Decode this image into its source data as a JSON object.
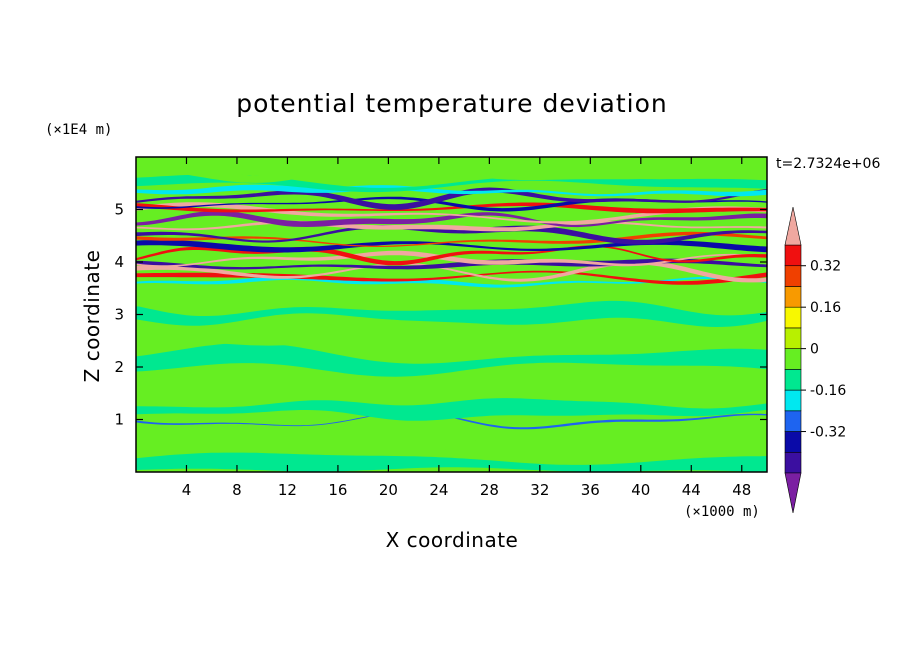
{
  "chart_data": {
    "type": "heatmap",
    "title": "potential temperature deviation",
    "xlabel": "X coordinate",
    "ylabel": "Z coordinate",
    "x_unit_label": "(×1000 m)",
    "y_unit_label": "(×1E4 m)",
    "time_label": "t=2.7324e+06",
    "xlim": [
      0,
      50
    ],
    "ylim": [
      0,
      6
    ],
    "x_ticks": [
      4,
      8,
      12,
      16,
      20,
      24,
      28,
      32,
      36,
      40,
      44,
      48
    ],
    "y_ticks": [
      1,
      2,
      3,
      4,
      5
    ],
    "colorbar": {
      "levels": [
        -0.48,
        -0.4,
        -0.32,
        -0.24,
        -0.16,
        -0.08,
        0,
        0.08,
        0.16,
        0.24,
        0.32,
        0.4
      ],
      "colors": [
        "#7b1fa2",
        "#3b0fa0",
        "#0a0aa8",
        "#1e64f0",
        "#00e8f0",
        "#00e890",
        "#66ee22",
        "#b8f000",
        "#f8f800",
        "#f89a00",
        "#f04000",
        "#f01010",
        "#f0a8a0"
      ],
      "tick_labels": [
        "0.32",
        "0.16",
        "0",
        "-0.16",
        "-0.32"
      ],
      "tick_values": [
        0.32,
        0.16,
        0,
        -0.16,
        -0.32
      ]
    },
    "bands": [
      {
        "z": 0.15,
        "zw": 0.3,
        "level": 5
      },
      {
        "z": 0.55,
        "zw": 0.25,
        "level": 6
      },
      {
        "z": 0.97,
        "zw": 0.04,
        "level": 3
      },
      {
        "z": 1.2,
        "zw": 0.3,
        "level": 5
      },
      {
        "z": 1.7,
        "zw": 0.25,
        "level": 6
      },
      {
        "z": 2.1,
        "zw": 0.35,
        "level": 5
      },
      {
        "z": 2.6,
        "zw": 0.3,
        "level": 6
      },
      {
        "z": 3.0,
        "zw": 0.3,
        "level": 5
      },
      {
        "z": 3.35,
        "zw": 0.2,
        "level": 6
      },
      {
        "z": 3.62,
        "zw": 0.08,
        "level": 4
      },
      {
        "z": 3.72,
        "zw": 0.08,
        "level": 11
      },
      {
        "z": 3.82,
        "zw": 0.08,
        "level": 12
      },
      {
        "z": 3.95,
        "zw": 0.1,
        "level": 1
      },
      {
        "z": 4.05,
        "zw": 0.08,
        "level": 12
      },
      {
        "z": 4.15,
        "zw": 0.08,
        "level": 11
      },
      {
        "z": 4.3,
        "zw": 0.1,
        "level": 2
      },
      {
        "z": 4.42,
        "zw": 0.06,
        "level": 10
      },
      {
        "z": 4.55,
        "zw": 0.1,
        "level": 1
      },
      {
        "z": 4.68,
        "zw": 0.08,
        "level": 12
      },
      {
        "z": 4.8,
        "zw": 0.1,
        "level": 0
      },
      {
        "z": 4.92,
        "zw": 0.08,
        "level": 12
      },
      {
        "z": 5.02,
        "zw": 0.08,
        "level": 11
      },
      {
        "z": 5.12,
        "zw": 0.06,
        "level": 2
      },
      {
        "z": 5.22,
        "zw": 0.1,
        "level": 1
      },
      {
        "z": 5.35,
        "zw": 0.1,
        "level": 4
      },
      {
        "z": 5.5,
        "zw": 0.15,
        "level": 5
      },
      {
        "z": 5.75,
        "zw": 0.25,
        "level": 6
      }
    ]
  }
}
